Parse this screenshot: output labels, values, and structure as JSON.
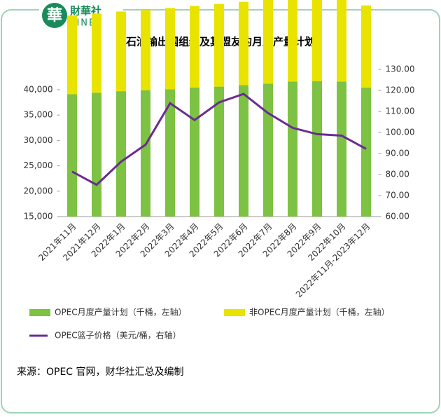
{
  "logo": {
    "mark": "華",
    "name": "財華社",
    "latin": "FINET"
  },
  "chart_data": {
    "type": "bar-line",
    "title": "石油输出国组织及其盟友的月度产量计划",
    "categories": [
      "2021年11月",
      "2021年12月",
      "2022年1月",
      "2022年2月",
      "2022年3月",
      "2022年4月",
      "2022年5月",
      "2022年6月",
      "2022年7月",
      "2022年8月",
      "2022年9月",
      "2022年10月",
      "2022年11月-2023年12月"
    ],
    "series": [
      {
        "name": "OPEC月度产量计划（千桶，左轴）",
        "color": "#7dc242",
        "stack": true,
        "values": [
          24100,
          24400,
          24700,
          24900,
          25100,
          25400,
          25600,
          25900,
          26200,
          26600,
          26700,
          26600,
          25400
        ]
      },
      {
        "name": "非OPEC月度产量计划（千桶，左轴）",
        "color": "#e8e400",
        "stack": true,
        "values": [
          15500,
          15600,
          15700,
          15800,
          16000,
          16100,
          16300,
          16400,
          16800,
          17000,
          16900,
          17000,
          16200
        ]
      },
      {
        "name": "OPEC篮子价格（美元/桶，右轴）",
        "color": "#6a2c91",
        "axis": "y2",
        "line": true,
        "values": [
          81.4,
          75.1,
          86.1,
          94.2,
          113.9,
          105.9,
          114.3,
          118.3,
          109.2,
          102.2,
          99.2,
          98.5,
          92.2
        ]
      }
    ],
    "ylim": [
      15000,
      44000
    ],
    "yticks": [
      {
        "value": 15000,
        "label": "15,000"
      },
      {
        "value": 20000,
        "label": "20,000"
      },
      {
        "value": 25000,
        "label": "25,000"
      },
      {
        "value": 30000,
        "label": "30,000"
      },
      {
        "value": 35000,
        "label": "35,000"
      },
      {
        "value": 40000,
        "label": "40,000"
      }
    ],
    "y2lim": [
      60,
      130
    ],
    "y2ticks": [
      {
        "value": 60,
        "label": "60.00"
      },
      {
        "value": 70,
        "label": "70.00"
      },
      {
        "value": 80,
        "label": "80.00"
      },
      {
        "value": 90,
        "label": "90.00"
      },
      {
        "value": 100,
        "label": "100.00"
      },
      {
        "value": 110,
        "label": "110.00"
      },
      {
        "value": 120,
        "label": "120.00"
      },
      {
        "value": 130,
        "label": "130.00"
      }
    ],
    "source": "来源：OPEC 官网，财华社汇总及编制"
  }
}
